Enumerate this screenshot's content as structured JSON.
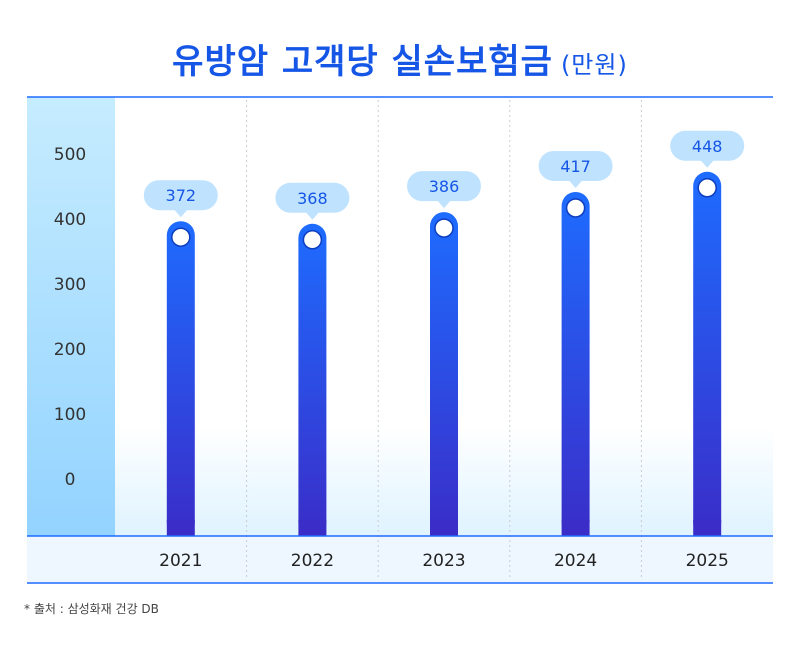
{
  "title": "유방암 고객당 실손보험금",
  "title_unit": "(만원)",
  "source": "* 출처 : 삼성화재 건강 DB",
  "colors": {
    "title": "#1556e6",
    "bar_top": "#1f6bff",
    "bar_bottom": "#3a2fc8",
    "bubble": "#bfe3ff",
    "bubble_text": "#1556e6",
    "axis_panel": "#c9ecff",
    "line": "#1f6bff"
  },
  "chart_data": {
    "type": "bar",
    "title": "유방암 고객당 실손보험금",
    "categories": [
      "2021",
      "2022",
      "2023",
      "2024",
      "2025"
    ],
    "values": [
      372,
      368,
      386,
      417,
      448
    ],
    "yticks": [
      0,
      100,
      200,
      300,
      400,
      500
    ],
    "ylim": [
      0,
      500
    ],
    "grid": false,
    "legend": "none"
  }
}
